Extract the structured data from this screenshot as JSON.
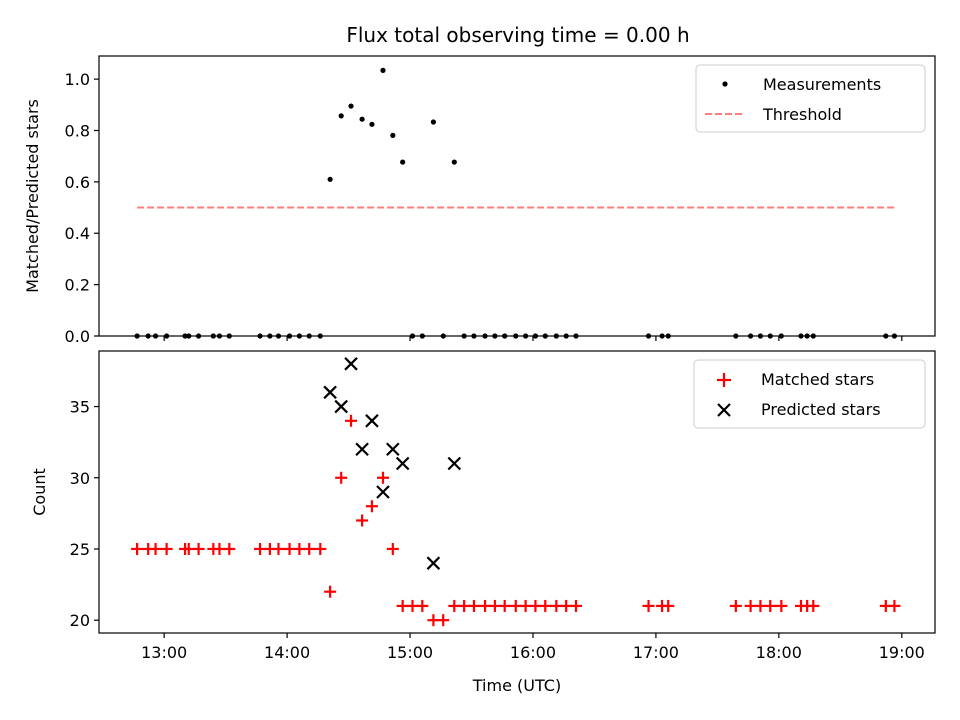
{
  "title": "Flux total observing time = 0.00 h",
  "chart_data": [
    {
      "type": "scatter",
      "ylabel": "Matched/Predicted stars",
      "xlabel": "",
      "x_unit": "hours (UTC)",
      "xlim": [
        12.47,
        19.27
      ],
      "ylim": [
        0,
        1.09
      ],
      "yticks": [
        0.0,
        0.2,
        0.4,
        0.6,
        0.8,
        1.0
      ],
      "ytick_labels": [
        "0.0",
        "0.2",
        "0.4",
        "0.6",
        "0.8",
        "1.0"
      ],
      "legend_position": "top-right",
      "series": [
        {
          "name": "Measurements",
          "marker": "dot",
          "color": "#000000",
          "x": [
            12.78,
            12.87,
            12.93,
            13.02,
            13.17,
            13.2,
            13.28,
            13.4,
            13.45,
            13.53,
            13.78,
            13.86,
            13.93,
            14.02,
            14.1,
            14.18,
            14.27,
            14.35,
            14.44,
            14.52,
            14.61,
            14.69,
            14.78,
            14.86,
            14.94,
            15.02,
            15.1,
            15.19,
            15.27,
            15.36,
            15.44,
            15.52,
            15.61,
            15.69,
            15.77,
            15.86,
            15.94,
            16.02,
            16.1,
            16.19,
            16.27,
            16.35,
            16.94,
            17.05,
            17.1,
            17.65,
            17.77,
            17.85,
            17.93,
            18.02,
            18.18,
            18.23,
            18.28,
            18.87,
            18.94
          ],
          "y": [
            0,
            0,
            0,
            0,
            0,
            0,
            0,
            0,
            0,
            0,
            0,
            0,
            0,
            0,
            0,
            0,
            0,
            0.61,
            0.857,
            0.895,
            0.844,
            0.824,
            1.034,
            0.781,
            0.677,
            0,
            0,
            0.833,
            0,
            0.677,
            0,
            0,
            0,
            0,
            0,
            0,
            0,
            0,
            0,
            0,
            0,
            0,
            0,
            0,
            0,
            0,
            0,
            0,
            0,
            0,
            0,
            0,
            0,
            0,
            0
          ]
        },
        {
          "name": "Threshold",
          "style": "dashed",
          "color": "#ff7f7f",
          "x": [
            12.78,
            18.94
          ],
          "y": [
            0.5,
            0.5
          ]
        }
      ]
    },
    {
      "type": "scatter",
      "ylabel": "Count",
      "xlabel": "Time (UTC)",
      "x_unit": "hours (UTC)",
      "xlim": [
        12.47,
        19.27
      ],
      "ylim": [
        19.1,
        38.9
      ],
      "xticks": [
        13,
        14,
        15,
        16,
        17,
        18,
        19
      ],
      "xtick_labels": [
        "13:00",
        "14:00",
        "15:00",
        "16:00",
        "17:00",
        "18:00",
        "19:00"
      ],
      "yticks": [
        20,
        25,
        30,
        35
      ],
      "ytick_labels": [
        "20",
        "25",
        "30",
        "35"
      ],
      "legend_position": "top-right",
      "series": [
        {
          "name": "Matched stars",
          "marker": "plus",
          "color": "#ff0000",
          "x": [
            12.78,
            12.87,
            12.93,
            13.02,
            13.17,
            13.2,
            13.28,
            13.4,
            13.45,
            13.53,
            13.78,
            13.86,
            13.93,
            14.02,
            14.1,
            14.18,
            14.27,
            14.35,
            14.44,
            14.52,
            14.61,
            14.69,
            14.78,
            14.86,
            14.94,
            15.02,
            15.1,
            15.19,
            15.27,
            15.36,
            15.44,
            15.52,
            15.61,
            15.69,
            15.77,
            15.86,
            15.94,
            16.02,
            16.1,
            16.19,
            16.27,
            16.35,
            16.94,
            17.05,
            17.1,
            17.65,
            17.77,
            17.85,
            17.93,
            18.02,
            18.18,
            18.23,
            18.28,
            18.87,
            18.94
          ],
          "y": [
            25,
            25,
            25,
            25,
            25,
            25,
            25,
            25,
            25,
            25,
            25,
            25,
            25,
            25,
            25,
            25,
            25,
            22,
            30,
            34,
            27,
            28,
            30,
            25,
            21,
            21,
            21,
            20,
            20,
            21,
            21,
            21,
            21,
            21,
            21,
            21,
            21,
            21,
            21,
            21,
            21,
            21,
            21,
            21,
            21,
            21,
            21,
            21,
            21,
            21,
            21,
            21,
            21,
            21,
            21
          ]
        },
        {
          "name": "Predicted stars",
          "marker": "x",
          "color": "#000000",
          "x": [
            14.35,
            14.44,
            14.52,
            14.61,
            14.69,
            14.78,
            14.86,
            14.94,
            15.19,
            15.36
          ],
          "y": [
            36,
            35,
            38,
            32,
            34,
            29,
            32,
            31,
            24,
            31
          ]
        }
      ]
    }
  ]
}
